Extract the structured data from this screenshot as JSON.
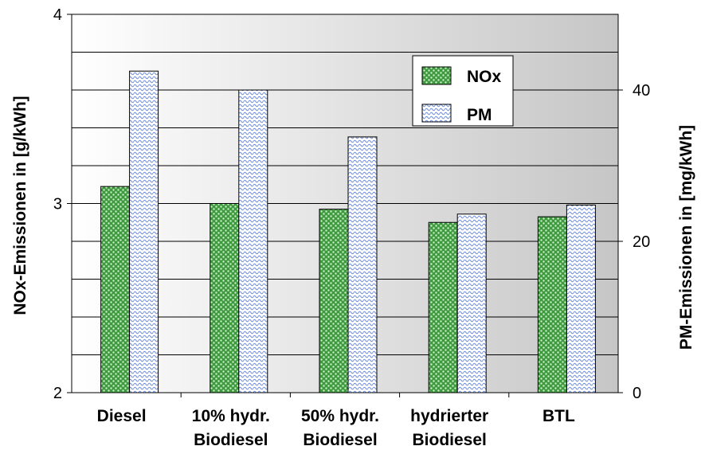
{
  "chart_data": {
    "type": "bar",
    "categories": [
      [
        "Diesel"
      ],
      [
        "10% hydr.",
        "Biodiesel"
      ],
      [
        "50% hydr.",
        "Biodiesel"
      ],
      [
        "hydrierter",
        "Biodiesel"
      ],
      [
        "BTL"
      ]
    ],
    "series": [
      {
        "name": "NOx",
        "axis": "left",
        "values": [
          3.09,
          3.0,
          2.97,
          2.9,
          2.93
        ],
        "color": "#3a9a3a"
      },
      {
        "name": "PM",
        "axis": "right",
        "values": [
          42.5,
          40.0,
          33.8,
          23.6,
          24.8
        ],
        "color": "#7a9be0"
      }
    ],
    "ylabel_left": "NOx-Emissionen in [g/kWh]",
    "ylabel_right": "PM-Emissionen in [mg/kWh]",
    "ylim_left": [
      2,
      4
    ],
    "ylim_right": [
      0,
      50
    ],
    "yticks_left": [
      "2",
      "3",
      "4"
    ],
    "yticks_right": [
      "0",
      "20",
      "40"
    ],
    "grid": true,
    "legend_position": "top-right"
  }
}
